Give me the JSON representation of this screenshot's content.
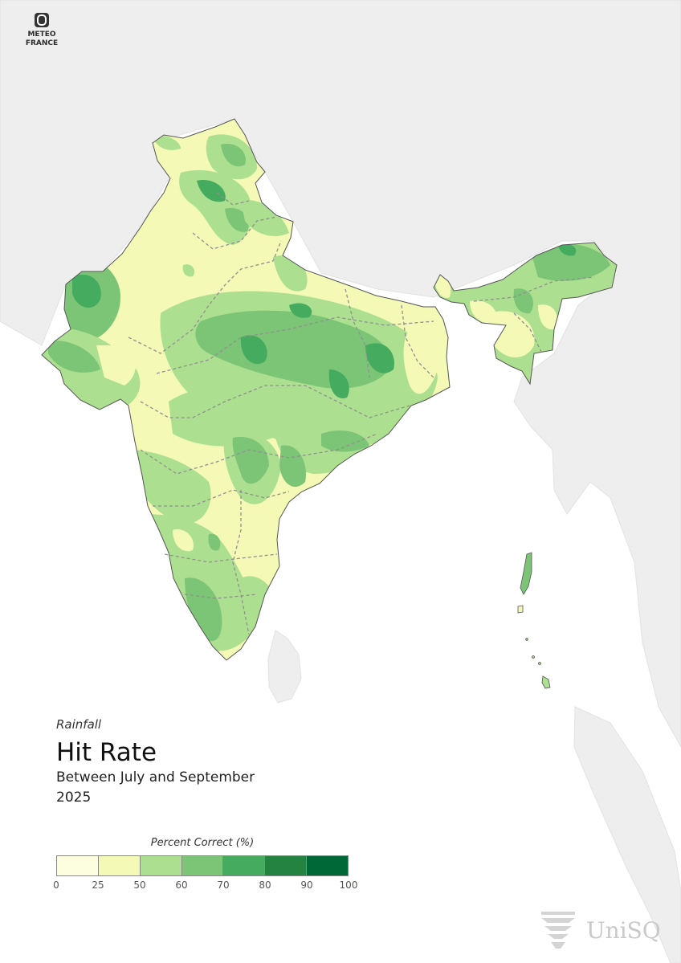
{
  "brand": {
    "line1": "METEO",
    "line2": "FRANCE",
    "logo_icon": "meteo-france-icon"
  },
  "titles": {
    "variable": "Rainfall",
    "title": "Hit Rate",
    "subtitle_line1": "Between July and September",
    "subtitle_line2": "2025"
  },
  "legend": {
    "title": "Percent Correct (%)",
    "ticks": [
      "0",
      "25",
      "50",
      "60",
      "70",
      "80",
      "90",
      "100"
    ],
    "colors": [
      "#fdfde0",
      "#f4f9b6",
      "#addf90",
      "#7cc576",
      "#45ab5e",
      "#258341",
      "#006837"
    ]
  },
  "uni": {
    "name": "UniSQ",
    "icon": "unisq-logo-icon"
  },
  "colors": {
    "sea": "#ffffff",
    "land": "#eeeeee",
    "border": "#dddddd",
    "state_border": "#909090",
    "coast": "#555555"
  }
}
